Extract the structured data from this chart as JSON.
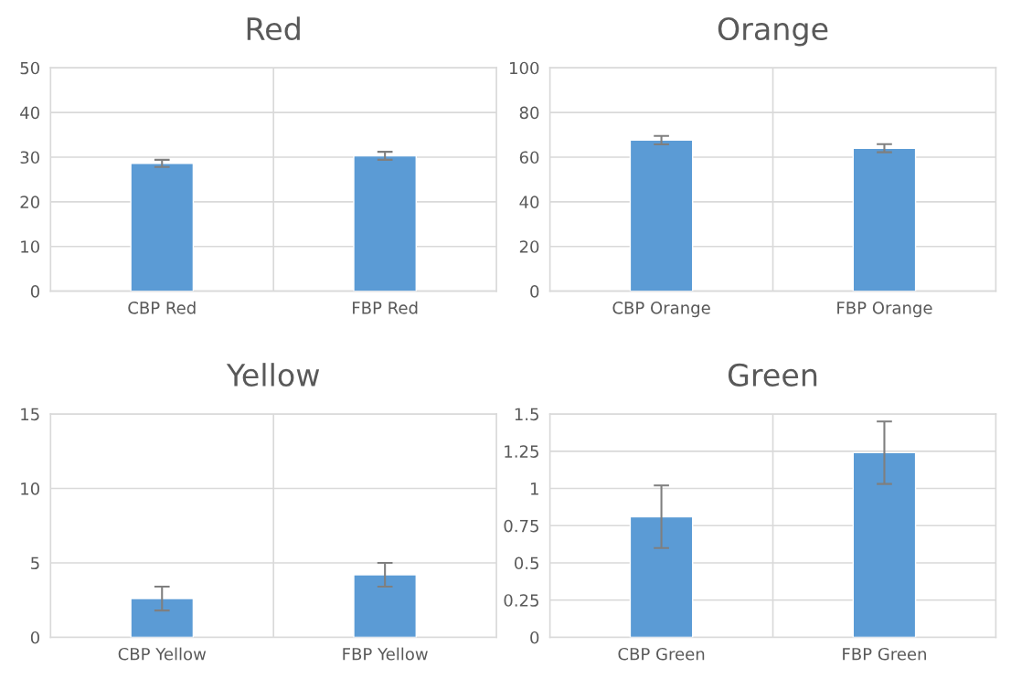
{
  "chart_data": [
    {
      "type": "bar",
      "title": "Red",
      "categories": [
        "CBP Red",
        "FBP Red"
      ],
      "values": [
        28.6,
        30.3
      ],
      "errors": [
        0.8,
        0.9
      ],
      "color": "#5b9bd5",
      "ylim": [
        0,
        50
      ],
      "yticks": [
        0,
        10,
        20,
        30,
        40,
        50
      ],
      "grid": true
    },
    {
      "type": "bar",
      "title": "Orange",
      "categories": [
        "CBP Orange",
        "FBP Orange"
      ],
      "values": [
        67.6,
        64.0
      ],
      "errors": [
        1.9,
        1.8
      ],
      "color": "#5b9bd5",
      "ylim": [
        0,
        100
      ],
      "yticks": [
        0,
        20,
        40,
        60,
        80,
        100
      ],
      "grid": true
    },
    {
      "type": "bar",
      "title": "Yellow",
      "categories": [
        "CBP Yellow",
        "FBP Yellow"
      ],
      "values": [
        2.6,
        4.2
      ],
      "errors": [
        0.8,
        0.8
      ],
      "color": "#5b9bd5",
      "ylim": [
        0,
        15
      ],
      "yticks": [
        0,
        5,
        10,
        15
      ],
      "grid": true
    },
    {
      "type": "bar",
      "title": "Green",
      "categories": [
        "CBP Green",
        "FBP Green"
      ],
      "values": [
        0.81,
        1.24
      ],
      "errors": [
        0.21,
        0.21
      ],
      "color": "#5b9bd5",
      "ylim": [
        0,
        1.5
      ],
      "yticks": [
        0,
        0.25,
        0.5,
        0.75,
        1,
        1.25,
        1.5
      ],
      "grid": true
    }
  ]
}
